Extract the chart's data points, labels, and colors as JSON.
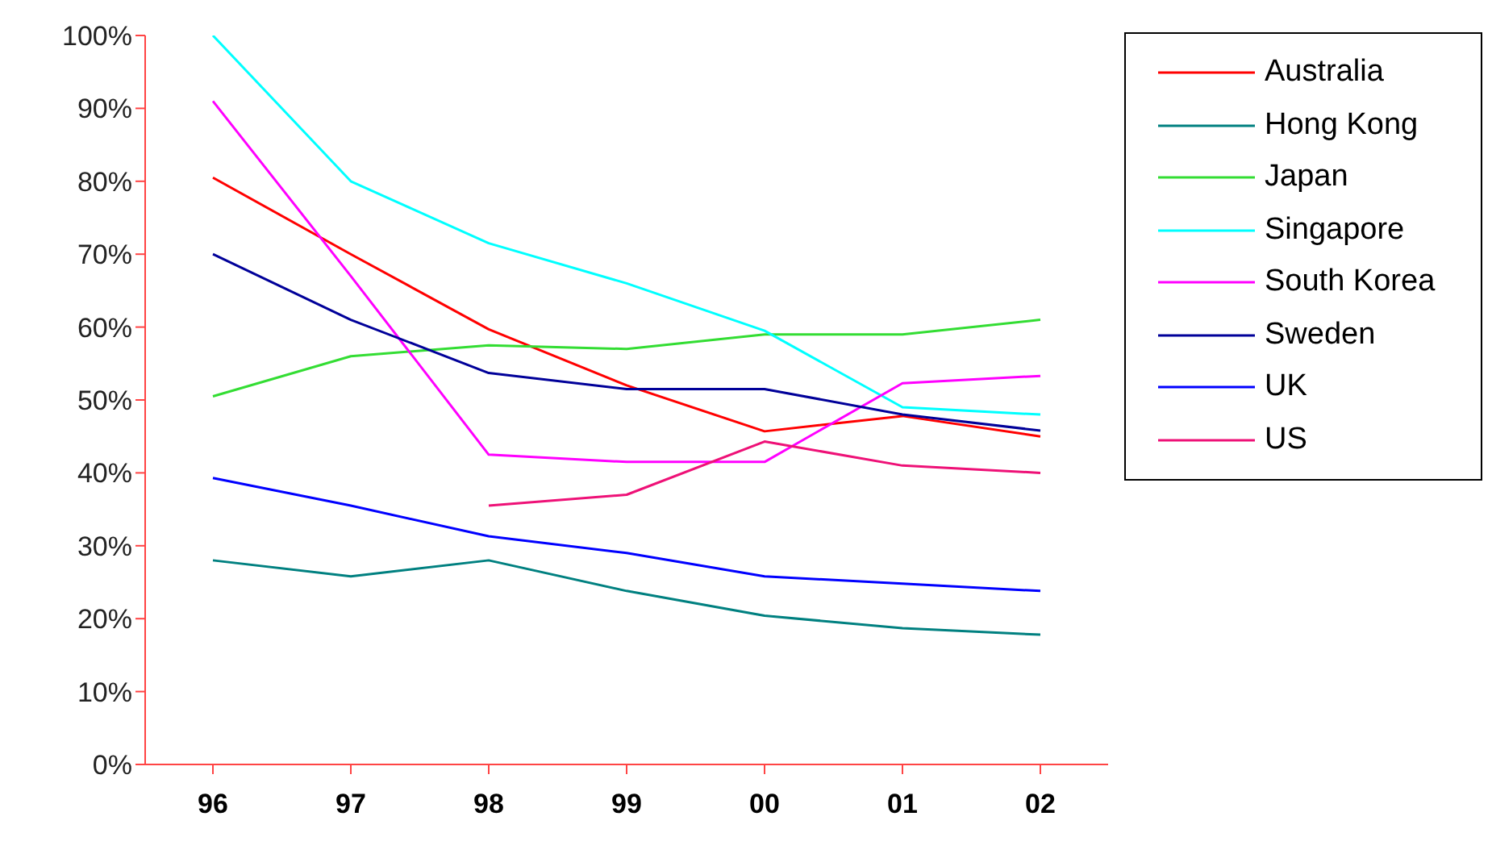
{
  "chart_data": {
    "type": "line",
    "categories": [
      "96",
      "97",
      "98",
      "99",
      "00",
      "01",
      "02"
    ],
    "series": [
      {
        "name": "Australia",
        "color": "#ff0000",
        "values": [
          80.5,
          70,
          59.7,
          52,
          45.7,
          47.8,
          45
        ]
      },
      {
        "name": "Hong Kong",
        "color": "#008080",
        "values": [
          28,
          25.8,
          28,
          23.8,
          20.4,
          18.7,
          17.8
        ]
      },
      {
        "name": "Japan",
        "color": "#33dd33",
        "values": [
          50.5,
          56,
          57.5,
          57,
          59,
          59,
          61
        ]
      },
      {
        "name": "Singapore",
        "color": "#00ffff",
        "values": [
          100,
          80,
          71.5,
          66,
          59.5,
          49,
          48
        ]
      },
      {
        "name": "South Korea",
        "color": "#ff00ff",
        "values": [
          91,
          67,
          42.5,
          41.5,
          41.5,
          52.3,
          53.3
        ]
      },
      {
        "name": "Sweden",
        "color": "#000099",
        "values": [
          70,
          61,
          53.7,
          51.5,
          51.5,
          48,
          45.8
        ]
      },
      {
        "name": "UK",
        "color": "#0000ff",
        "values": [
          39.3,
          35.5,
          31.3,
          29,
          25.8,
          24.8,
          23.8
        ]
      },
      {
        "name": "US",
        "color": "#ee1177",
        "values": [
          null,
          null,
          35.5,
          37,
          44.3,
          41,
          40
        ]
      }
    ],
    "ylim": [
      0,
      100
    ],
    "yticks": [
      {
        "value": 0,
        "label": "0%"
      },
      {
        "value": 10,
        "label": "10%"
      },
      {
        "value": 20,
        "label": "20%"
      },
      {
        "value": 30,
        "label": "30%"
      },
      {
        "value": 40,
        "label": "40%"
      },
      {
        "value": 50,
        "label": "50%"
      },
      {
        "value": 60,
        "label": "60%"
      },
      {
        "value": 70,
        "label": "70%"
      },
      {
        "value": 80,
        "label": "80%"
      },
      {
        "value": 90,
        "label": "90%"
      },
      {
        "value": 100,
        "label": "100%"
      }
    ],
    "grid": false,
    "legend": "top right",
    "marker": "none",
    "line_style": "solid"
  }
}
